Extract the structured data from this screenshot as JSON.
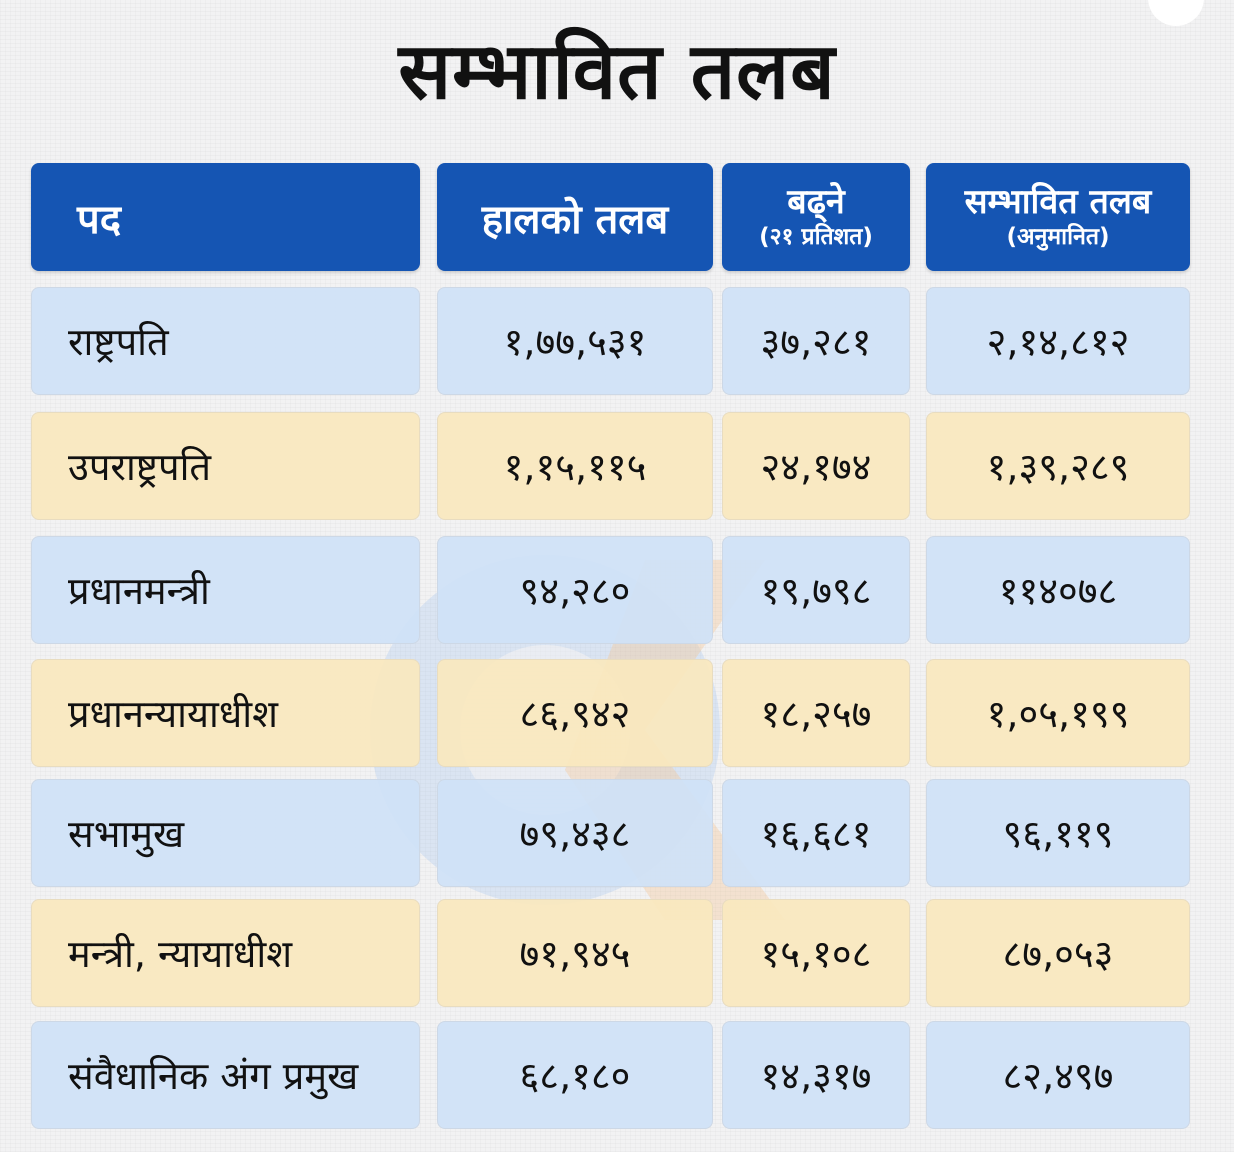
{
  "title": "सम्भावित तलब",
  "headers": {
    "position": "पद",
    "current": "हालको तलब",
    "increase": "बढ्ने",
    "increase_note": "(२१ प्रतिशत)",
    "expected": "सम्भावित तलब",
    "expected_note": "(अनुमानित)"
  },
  "rows": [
    {
      "position": "राष्ट्रपति",
      "current": "१,७७,५३१",
      "increase": "३७,२८१",
      "expected": "२,१४,८१२"
    },
    {
      "position": "उपराष्ट्रपति",
      "current": "१,१५,११५",
      "increase": "२४,१७४",
      "expected": "१,३९,२८९"
    },
    {
      "position": "प्रधानमन्त्री",
      "current": "९४,२८०",
      "increase": "१९,७९८",
      "expected": "११४०७८"
    },
    {
      "position": "प्रधानन्यायाधीश",
      "current": "८६,९४२",
      "increase": "१८,२५७",
      "expected": "१,०५,१९९"
    },
    {
      "position": "सभामुख",
      "current": "७९,४३८",
      "increase": "१६,६८१",
      "expected": "९६,११९"
    },
    {
      "position": "मन्त्री, न्यायाधीश",
      "current": "७१,९४५",
      "increase": "१५,१०८",
      "expected": "८७,०५३"
    },
    {
      "position": "संवैधानिक अंग प्रमुख",
      "current": "६८,१८०",
      "increase": "१४,३१७",
      "expected": "८२,४९७"
    }
  ],
  "colors": {
    "header": "#1555b3",
    "row_blue": "#cfe2f7",
    "row_yellow": "#fae8be",
    "watermark_blue": "#a9c6ef",
    "watermark_orange": "#f5b066"
  }
}
